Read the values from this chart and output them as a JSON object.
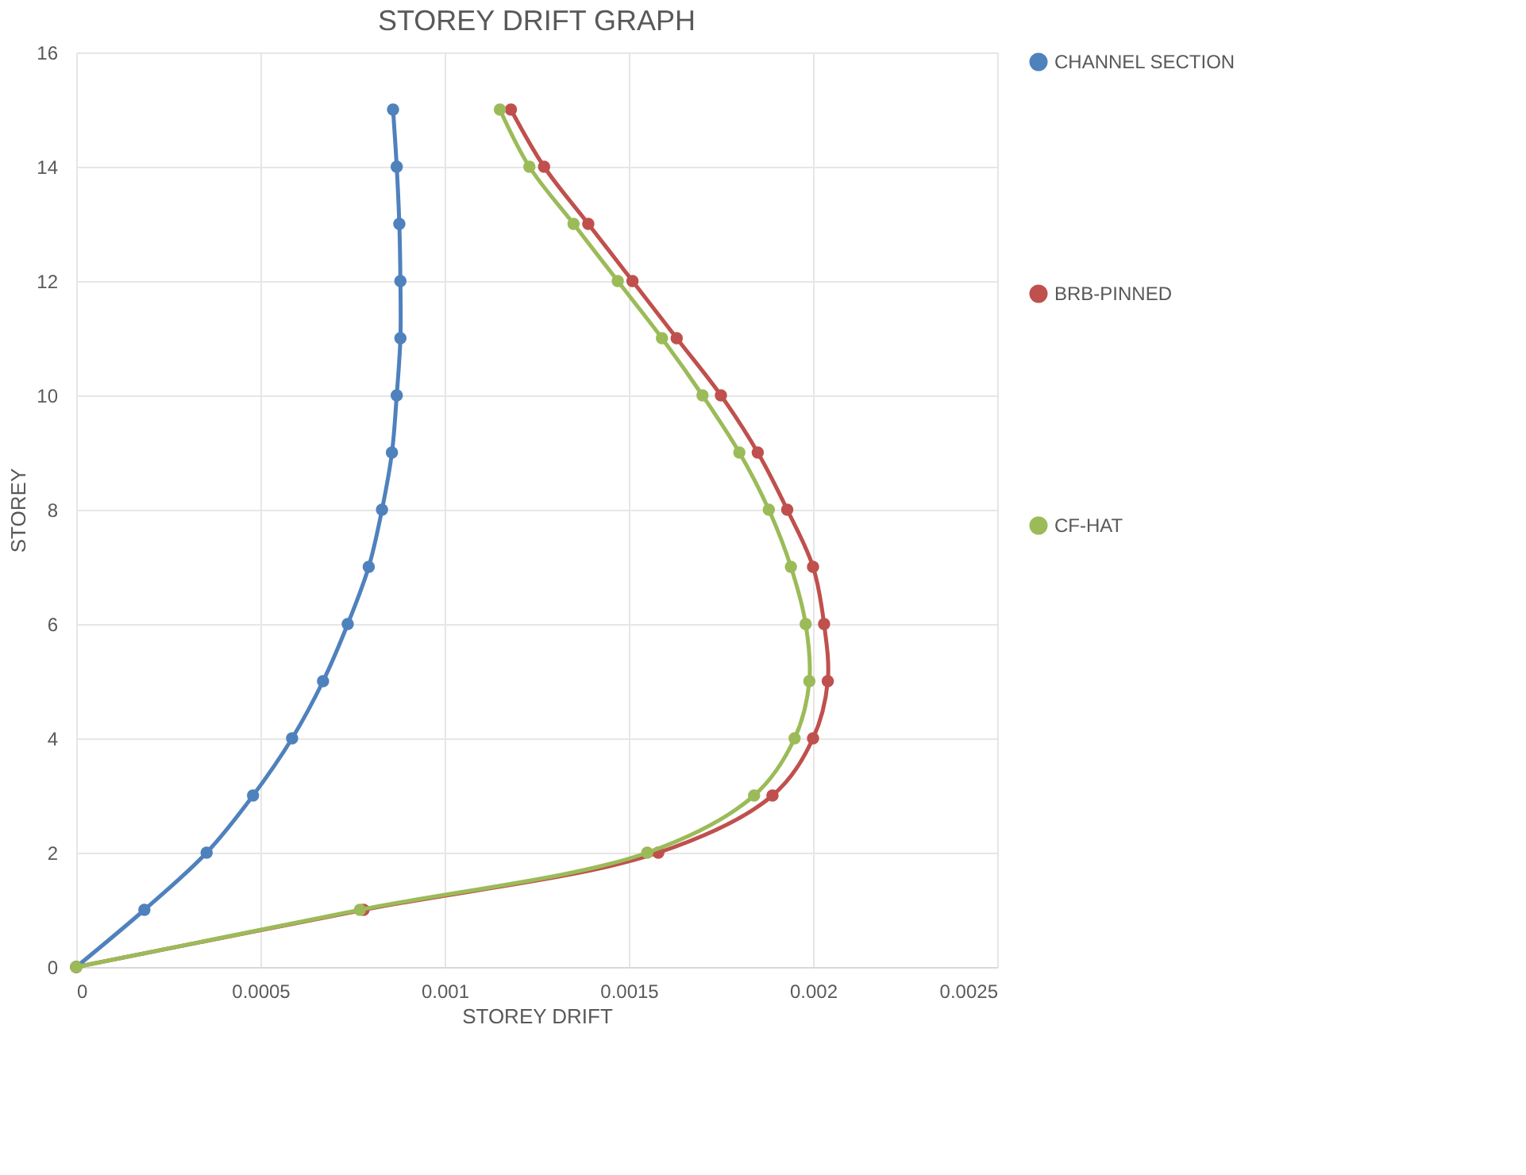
{
  "chart_data": {
    "type": "line",
    "title": "STOREY DRIFT GRAPH",
    "xlabel": "STOREY DRIFT",
    "ylabel": "STOREY",
    "xlim": [
      0,
      0.0025
    ],
    "xticks": [
      0,
      0.0005,
      0.001,
      0.0015,
      0.002,
      0.0025
    ],
    "ylim": [
      0,
      16
    ],
    "yticks": [
      0,
      2,
      4,
      6,
      8,
      10,
      12,
      14,
      16
    ],
    "grid": true,
    "legend": "right",
    "marker": "circle",
    "line_style": "solid",
    "series": [
      {
        "name": "CHANNEL SECTION",
        "color": "#4f81bd",
        "x": [
          0,
          0.000185,
          0.000354,
          0.00048,
          0.000586,
          0.00067,
          0.000737,
          0.000794,
          0.00083,
          0.000857,
          0.00087,
          0.00088,
          0.00088,
          0.000877,
          0.00087,
          0.00086
        ],
        "values": [
          0,
          1,
          2,
          3,
          4,
          5,
          6,
          7,
          8,
          9,
          10,
          11,
          12,
          13,
          14,
          15
        ]
      },
      {
        "name": "BRB-PINNED",
        "color": "#c0504d",
        "x": [
          0,
          0.00078,
          0.00158,
          0.00189,
          0.002,
          0.00204,
          0.00203,
          0.002,
          0.00193,
          0.00185,
          0.00175,
          0.00163,
          0.00151,
          0.00139,
          0.00127,
          0.00118
        ],
        "values": [
          0,
          1,
          2,
          3,
          4,
          5,
          6,
          7,
          8,
          9,
          10,
          11,
          12,
          13,
          14,
          15
        ]
      },
      {
        "name": "CF-HAT",
        "color": "#9bbb59",
        "x": [
          0,
          0.00077,
          0.00155,
          0.00184,
          0.00195,
          0.00199,
          0.00198,
          0.00194,
          0.00188,
          0.0018,
          0.0017,
          0.00159,
          0.00147,
          0.00135,
          0.00123,
          0.00115
        ],
        "values": [
          0,
          1,
          2,
          3,
          4,
          5,
          6,
          7,
          8,
          9,
          10,
          11,
          12,
          13,
          14,
          15
        ]
      }
    ]
  }
}
